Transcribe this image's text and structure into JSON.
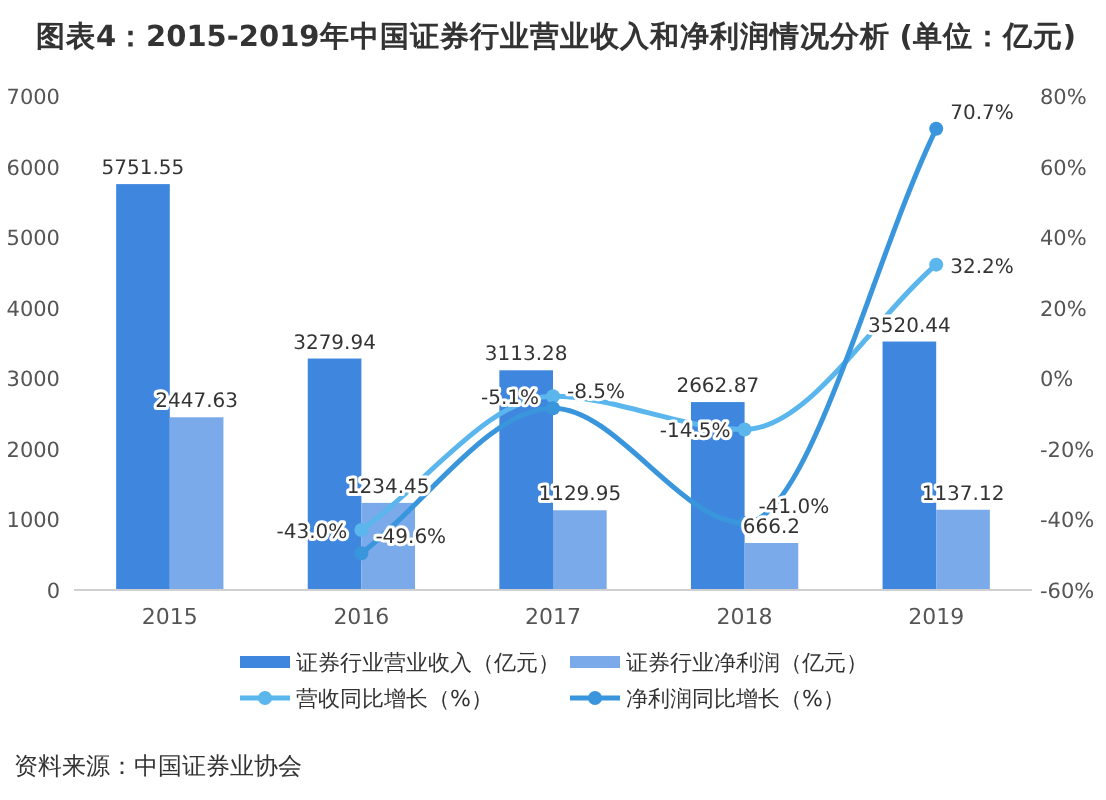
{
  "chart_data": {
    "type": "bar",
    "title": "图表4：2015-2019年中国证券行业营业收入和净利润情况分析 (单位：亿元)",
    "categories": [
      "2015",
      "2016",
      "2017",
      "2018",
      "2019"
    ],
    "series": [
      {
        "name": "证券行业营业收入（亿元）",
        "color": "#3f86de",
        "values": [
          5751.55,
          3279.94,
          3113.28,
          2662.87,
          3520.44
        ],
        "value_labels": [
          "5751.55",
          "3279.94",
          "3113.28",
          "2662.87",
          "3520.44"
        ]
      },
      {
        "name": "证券行业净利润（亿元）",
        "color": "#7aaaea",
        "values": [
          2447.63,
          1234.45,
          1129.95,
          666.2,
          1137.12
        ],
        "value_labels": [
          "2447.63",
          "1234.45",
          "1129.95",
          "666.2",
          "1137.12"
        ]
      },
      {
        "name": "营收同比增长（%）",
        "type": "line",
        "axis": "y2",
        "color": "#5ab6ec",
        "values": [
          null,
          -43.0,
          -5.1,
          -14.5,
          32.2
        ],
        "value_labels": [
          null,
          "-43.0%",
          "-5.1%",
          "-14.5%",
          "32.2%"
        ]
      },
      {
        "name": "净利润同比增长（%）",
        "type": "line",
        "axis": "y2",
        "color": "#3a96dc",
        "values": [
          null,
          -49.6,
          -8.5,
          -41.0,
          70.7
        ],
        "value_labels": [
          null,
          "-49.6%",
          "-8.5%",
          "-41.0%",
          "70.7%"
        ]
      }
    ],
    "ylim": [
      0,
      7000
    ],
    "yticks": [
      0,
      1000,
      2000,
      3000,
      4000,
      5000,
      6000,
      7000
    ],
    "y2lim": [
      -60,
      80
    ],
    "y2ticks": [
      {
        "value": -60,
        "label": "-60%"
      },
      {
        "value": -40,
        "label": "-40%"
      },
      {
        "value": -20,
        "label": "-20%"
      },
      {
        "value": 0,
        "label": "0%"
      },
      {
        "value": 20,
        "label": "20%"
      },
      {
        "value": 40,
        "label": "40%"
      },
      {
        "value": 60,
        "label": "60%"
      },
      {
        "value": 80,
        "label": "80%"
      }
    ],
    "legend": "bottom",
    "marker": "circle",
    "line_style": "solid",
    "annotations": [
      "资料来源：中国证券业协会"
    ]
  }
}
